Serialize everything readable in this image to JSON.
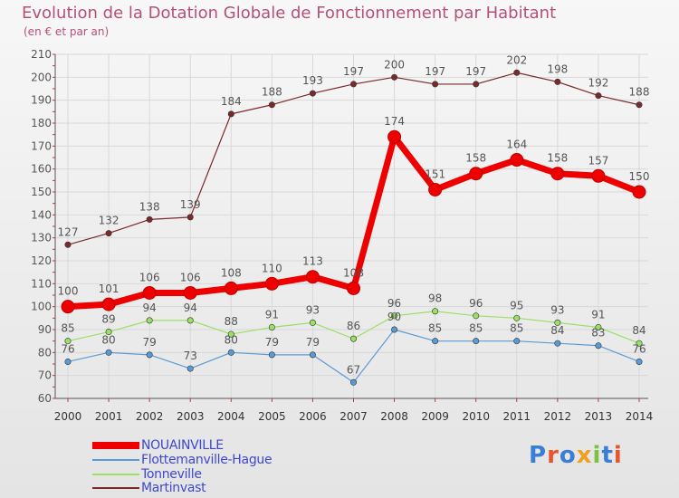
{
  "title": "Evolution de la Dotation Globale de Fonctionnement par Habitant",
  "subtitle": "(en € et par an)",
  "brand": "Proxiti",
  "colors": {
    "title": "#b4507a",
    "legend_text": "#3f48cc",
    "grid": "#d8d8d8",
    "axis": "#555555",
    "labels": "#555555"
  },
  "chart_data": {
    "type": "line",
    "title": "Evolution de la Dotation Globale de Fonctionnement par Habitant",
    "subtitle": "(en € et par an)",
    "xlabel": "",
    "ylabel": "",
    "x": [
      2000,
      2001,
      2002,
      2003,
      2004,
      2005,
      2006,
      2007,
      2008,
      2009,
      2010,
      2011,
      2012,
      2013,
      2014
    ],
    "ylim": [
      60,
      210
    ],
    "yticks": [
      60,
      70,
      80,
      90,
      100,
      110,
      120,
      130,
      140,
      150,
      160,
      170,
      180,
      190,
      200,
      210
    ],
    "grid": true,
    "legend_position": "bottom-left",
    "series": [
      {
        "name": "NOUAINVILLE",
        "color": "#ee0000",
        "emphasis": true,
        "values": [
          100,
          101,
          106,
          106,
          108,
          110,
          113,
          108,
          174,
          151,
          158,
          164,
          158,
          157,
          150
        ]
      },
      {
        "name": "Flottemanville-Hague",
        "color": "#5b9bd5",
        "emphasis": false,
        "values": [
          76,
          80,
          79,
          73,
          80,
          79,
          79,
          67,
          90,
          85,
          85,
          85,
          84,
          83,
          76
        ]
      },
      {
        "name": "Tonneville",
        "color": "#99e066",
        "emphasis": false,
        "values": [
          85,
          89,
          94,
          94,
          88,
          91,
          93,
          86,
          96,
          98,
          96,
          95,
          93,
          91,
          84
        ]
      },
      {
        "name": "Martinvast",
        "color": "#7a2a2a",
        "emphasis": false,
        "values": [
          127,
          132,
          138,
          139,
          184,
          188,
          193,
          197,
          200,
          197,
          197,
          202,
          198,
          192,
          188
        ]
      }
    ]
  }
}
